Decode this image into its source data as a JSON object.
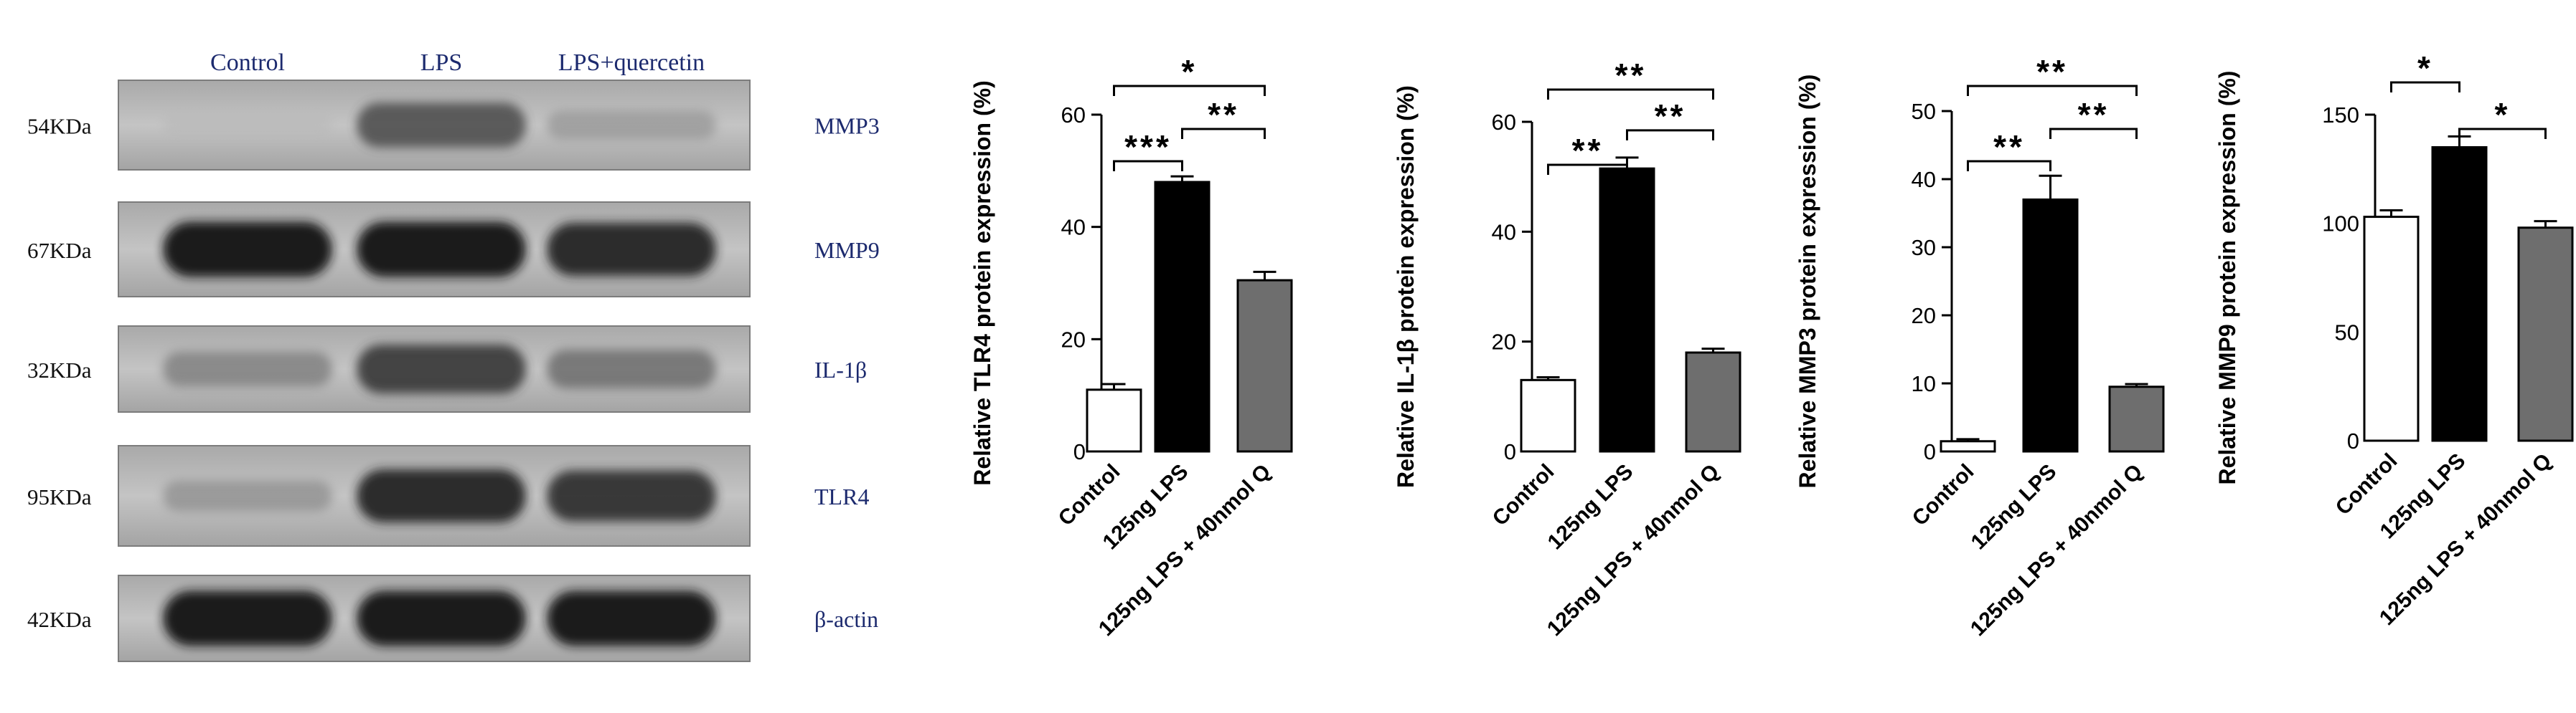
{
  "western_blot": {
    "lanes": [
      "Control",
      "LPS",
      "LPS+quercetin"
    ],
    "rows": [
      {
        "marker": "54KDa",
        "protein": "MMP3",
        "intensity": [
          0.05,
          0.7,
          0.3
        ]
      },
      {
        "marker": "67KDa",
        "protein": "MMP9",
        "intensity": [
          0.95,
          0.95,
          0.9
        ]
      },
      {
        "marker": "32KDa",
        "protein": "IL-1β",
        "intensity": [
          0.45,
          0.8,
          0.55
        ]
      },
      {
        "marker": "95KDa",
        "protein": "TLR4",
        "intensity": [
          0.35,
          0.9,
          0.85
        ]
      },
      {
        "marker": "42KDa",
        "protein": "β-actin",
        "intensity": [
          0.95,
          0.95,
          0.95
        ]
      }
    ],
    "colors": {
      "text": "#1c2a6e",
      "panel_bg": "#bdbdbd",
      "band": "#141414"
    }
  },
  "chart_data": [
    {
      "type": "bar",
      "ylabel": "Relative TLR4 protein expression (%)",
      "categories": [
        "Control",
        "125ng LPS",
        "125ng LPS + 40nmol Q"
      ],
      "values": [
        11,
        48,
        30.5
      ],
      "errors": [
        1.0,
        1.0,
        1.5
      ],
      "ylim": [
        0,
        60
      ],
      "yticks": [
        "0",
        "20",
        "40",
        "60"
      ],
      "fills": [
        "#ffffff",
        "#000000",
        "#6e6e6e"
      ],
      "significance": [
        {
          "from": 0,
          "to": 1,
          "label": "***"
        },
        {
          "from": 1,
          "to": 2,
          "label": "**"
        },
        {
          "from": 0,
          "to": 2,
          "label": "*"
        }
      ]
    },
    {
      "type": "bar",
      "ylabel": "Relative IL-1β protein expression (%)",
      "categories": [
        "Control",
        "125ng LPS",
        "125ng LPS + 40nmol Q"
      ],
      "values": [
        13,
        51.5,
        18
      ],
      "errors": [
        0.5,
        2.0,
        0.7
      ],
      "ylim": [
        0,
        60
      ],
      "yticks": [
        "0",
        "20",
        "40",
        "60"
      ],
      "fills": [
        "#ffffff",
        "#000000",
        "#6e6e6e"
      ],
      "significance": [
        {
          "from": 0,
          "to": 1,
          "label": "**"
        },
        {
          "from": 1,
          "to": 2,
          "label": "**"
        },
        {
          "from": 0,
          "to": 2,
          "label": "**"
        }
      ]
    },
    {
      "type": "bar",
      "ylabel": "Relative MMP3 protein expression (%)",
      "categories": [
        "Control",
        "125ng LPS",
        "125ng LPS + 40nmol Q"
      ],
      "values": [
        1.5,
        37,
        9.5
      ],
      "errors": [
        0.3,
        3.5,
        0.4
      ],
      "ylim": [
        0,
        50
      ],
      "yticks": [
        "0",
        "10",
        "20",
        "30",
        "40",
        "50"
      ],
      "fills": [
        "#ffffff",
        "#000000",
        "#6e6e6e"
      ],
      "significance": [
        {
          "from": 0,
          "to": 1,
          "label": "**"
        },
        {
          "from": 1,
          "to": 2,
          "label": "**"
        },
        {
          "from": 0,
          "to": 2,
          "label": "**"
        }
      ]
    },
    {
      "type": "bar",
      "ylabel": "Relative MMP9 protein expression (%)",
      "categories": [
        "Control",
        "125ng LPS",
        "125ng LPS + 40nmol Q"
      ],
      "values": [
        103,
        135,
        98
      ],
      "errors": [
        3,
        5,
        3
      ],
      "ylim": [
        0,
        150
      ],
      "yticks": [
        "0",
        "50",
        "100",
        "150"
      ],
      "fills": [
        "#ffffff",
        "#000000",
        "#6e6e6e"
      ],
      "significance": [
        {
          "from": 0,
          "to": 1,
          "label": "*"
        },
        {
          "from": 1,
          "to": 2,
          "label": "*"
        }
      ]
    }
  ]
}
